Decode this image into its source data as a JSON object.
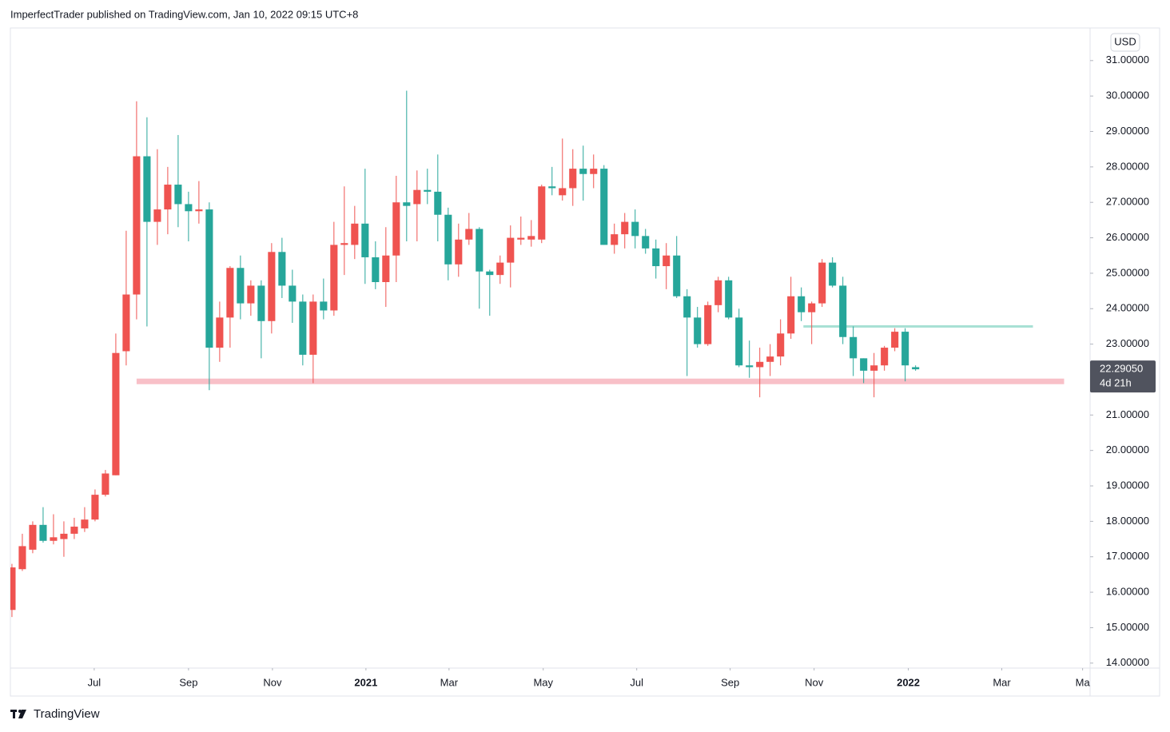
{
  "header": "ImperfectTrader published on TradingView.com, Jan 10, 2022 09:15 UTC+8",
  "footer": "TradingView",
  "chart_data": {
    "type": "candlestick",
    "currency": "USD",
    "up_color": "#ef5350",
    "down_color": "#26a69a",
    "open": [
      15.5,
      16.65,
      17.2,
      17.9,
      17.45,
      17.5,
      17.65,
      17.8,
      18.05,
      18.75,
      19.3,
      22.8,
      24.4,
      28.3,
      26.45,
      26.8,
      27.5,
      26.95,
      26.75,
      26.8,
      22.9,
      23.75,
      25.15,
      24.15,
      24.65,
      23.65,
      25.6,
      24.65,
      24.2,
      22.7,
      24.2,
      23.95,
      25.8,
      25.8,
      26.4,
      25.45,
      24.75,
      25.5,
      27.0,
      26.95,
      27.35,
      27.3,
      26.65,
      25.25,
      25.95,
      26.25,
      25.05,
      24.95,
      25.3,
      25.95,
      25.95,
      25.95,
      27.45,
      27.2,
      27.4,
      27.95,
      27.8,
      27.95,
      25.8,
      26.1,
      26.45,
      26.05,
      25.7,
      25.2,
      25.5,
      24.35,
      23.75,
      23.0,
      24.1,
      24.8,
      23.75,
      22.4,
      22.35,
      22.5,
      22.65,
      23.3,
      24.35,
      23.9,
      24.15,
      25.3,
      24.65,
      23.2,
      22.6,
      22.25,
      22.4,
      22.9,
      23.35,
      22.35
    ],
    "high": [
      16.8,
      17.65,
      18.0,
      18.4,
      18.2,
      18.0,
      18.1,
      18.4,
      18.9,
      19.45,
      23.3,
      26.2,
      29.85,
      29.4,
      28.5,
      28.0,
      28.9,
      27.3,
      27.6,
      27.0,
      24.2,
      25.2,
      25.5,
      24.8,
      24.8,
      25.85,
      26.0,
      25.1,
      24.4,
      24.4,
      24.85,
      26.45,
      27.45,
      26.9,
      27.95,
      25.9,
      26.3,
      27.75,
      30.15,
      27.9,
      27.95,
      28.35,
      26.85,
      26.4,
      26.7,
      26.3,
      25.1,
      25.5,
      26.35,
      26.6,
      26.5,
      27.5,
      28.0,
      28.8,
      28.5,
      28.6,
      28.35,
      28.05,
      26.4,
      26.7,
      26.8,
      26.25,
      25.95,
      25.85,
      26.05,
      24.55,
      24.05,
      24.2,
      24.9,
      24.9,
      24.0,
      23.1,
      22.9,
      23.0,
      23.7,
      24.9,
      24.6,
      24.2,
      25.4,
      25.45,
      24.9,
      23.5,
      22.6,
      22.75,
      22.95,
      23.45,
      23.45,
      22.4
    ],
    "low": [
      15.3,
      16.6,
      17.1,
      17.4,
      17.35,
      17.0,
      17.5,
      17.7,
      18.0,
      18.7,
      19.3,
      22.4,
      23.7,
      23.5,
      25.8,
      26.1,
      26.3,
      25.9,
      26.4,
      21.7,
      22.5,
      22.9,
      23.7,
      23.8,
      22.6,
      23.3,
      24.3,
      23.6,
      22.4,
      21.9,
      23.7,
      23.8,
      24.95,
      25.4,
      24.7,
      24.55,
      24.05,
      24.75,
      25.9,
      25.9,
      26.95,
      25.9,
      24.8,
      24.9,
      25.8,
      24.0,
      23.8,
      24.7,
      24.6,
      25.8,
      25.75,
      25.85,
      27.2,
      27.05,
      26.9,
      27.05,
      27.4,
      25.8,
      25.55,
      25.7,
      25.7,
      25.55,
      24.85,
      24.55,
      24.3,
      22.1,
      22.9,
      22.95,
      23.9,
      23.7,
      22.35,
      22.05,
      21.5,
      22.1,
      22.4,
      23.15,
      23.65,
      23.0,
      24.05,
      24.6,
      23.0,
      22.1,
      21.9,
      21.5,
      22.25,
      22.8,
      21.95,
      22.25
    ],
    "close": [
      16.7,
      17.3,
      17.9,
      17.45,
      17.55,
      17.65,
      17.85,
      18.05,
      18.75,
      19.35,
      22.75,
      24.4,
      28.3,
      26.45,
      26.8,
      27.5,
      26.95,
      26.75,
      26.8,
      22.9,
      23.75,
      25.15,
      24.15,
      24.65,
      23.65,
      25.6,
      24.65,
      24.2,
      22.7,
      24.2,
      23.95,
      25.8,
      25.85,
      26.4,
      25.45,
      24.75,
      25.5,
      27.0,
      26.9,
      27.35,
      27.3,
      26.65,
      25.25,
      25.95,
      26.25,
      25.05,
      24.95,
      25.3,
      26.0,
      26.0,
      26.05,
      27.45,
      27.4,
      27.4,
      27.95,
      27.8,
      27.95,
      25.8,
      26.1,
      26.45,
      26.05,
      25.7,
      25.2,
      25.5,
      24.35,
      23.75,
      23.0,
      24.1,
      24.8,
      23.75,
      22.4,
      22.35,
      22.5,
      22.65,
      23.3,
      24.35,
      23.9,
      24.15,
      25.3,
      24.65,
      23.2,
      22.6,
      22.25,
      22.4,
      22.9,
      23.35,
      22.4,
      22.29
    ],
    "xlim": [
      -0.15,
      103.8
    ],
    "xticks": [
      {
        "value": 7.92,
        "label": "Jul"
      },
      {
        "value": 17,
        "label": "Sep"
      },
      {
        "value": 25.08,
        "label": "Nov"
      },
      {
        "value": 34.08,
        "label": "2021",
        "bold": true
      },
      {
        "value": 42.08,
        "label": "Mar"
      },
      {
        "value": 51.15,
        "label": "May"
      },
      {
        "value": 60.15,
        "label": "Jul"
      },
      {
        "value": 69.15,
        "label": "Sep"
      },
      {
        "value": 77.23,
        "label": "Nov"
      },
      {
        "value": 86.3,
        "label": "2022",
        "bold": true
      },
      {
        "value": 95.3,
        "label": "Mar"
      },
      {
        "value": 103.08,
        "label": "Ma"
      }
    ],
    "ylim": [
      13.86,
      31.92
    ],
    "yticks": [
      {
        "value": 14,
        "label": "14.00000"
      },
      {
        "value": 15,
        "label": "15.00000"
      },
      {
        "value": 16,
        "label": "16.00000"
      },
      {
        "value": 17,
        "label": "17.00000"
      },
      {
        "value": 18,
        "label": "18.00000"
      },
      {
        "value": 19,
        "label": "19.00000"
      },
      {
        "value": 20,
        "label": "20.00000"
      },
      {
        "value": 21,
        "label": "21.00000"
      },
      {
        "value": 22,
        "label": "22.00000"
      },
      {
        "value": 23,
        "label": "23.00000"
      },
      {
        "value": 24,
        "label": "24.00000"
      },
      {
        "value": 25,
        "label": "25.00000"
      },
      {
        "value": 26,
        "label": "26.00000"
      },
      {
        "value": 27,
        "label": "27.00000"
      },
      {
        "value": 28,
        "label": "28.00000"
      },
      {
        "value": 29,
        "label": "29.00000"
      },
      {
        "value": 30,
        "label": "30.00000"
      },
      {
        "value": 31,
        "label": "31.00000"
      }
    ],
    "grid": false,
    "hlines": [
      {
        "value": 21.95,
        "from": 12,
        "to": 101.3,
        "color": "#f8c0c8",
        "width": 7
      },
      {
        "value": 23.5,
        "from": 76.2,
        "to": 98.3,
        "color": "#a8e0d4",
        "width": 3
      }
    ],
    "last_price": {
      "value": 22.2905,
      "label": "22.29050"
    },
    "countdown": "4d 21h"
  }
}
